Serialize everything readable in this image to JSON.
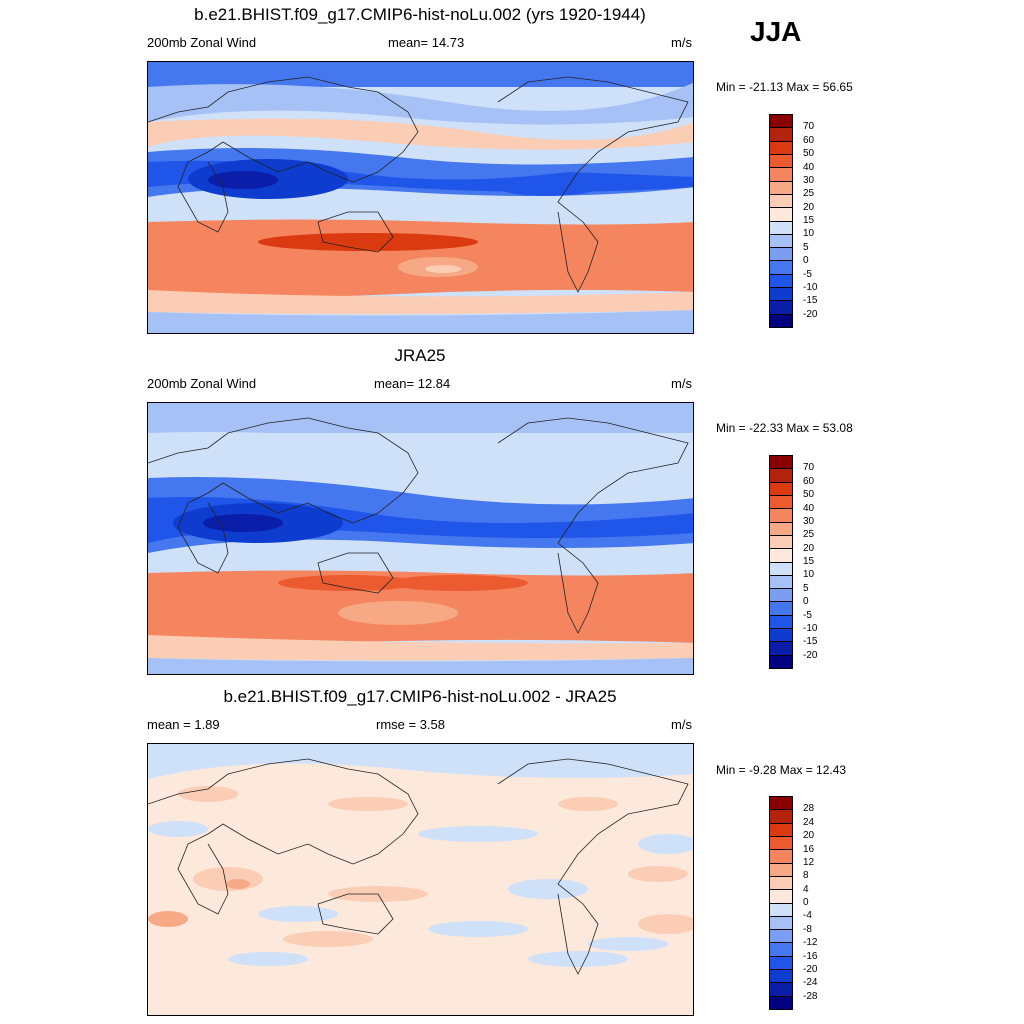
{
  "season": "JJA",
  "panels": [
    {
      "title": "b.e21.BHIST.f09_g17.CMIP6-hist-noLu.002 (yrs 1920-1944)",
      "left_label": "200mb Zonal Wind",
      "center_label": "mean=  14.73",
      "right_label": "m/s",
      "minmax": "Min = -21.13 Max =  56.65",
      "colorbar_ticks": [
        "70",
        "60",
        "50",
        "40",
        "30",
        "25",
        "20",
        "15",
        "10",
        "5",
        "0",
        "-5",
        "-10",
        "-15",
        "-20"
      ],
      "field": "model"
    },
    {
      "title": "JRA25",
      "left_label": "200mb Zonal Wind",
      "center_label": "mean=  12.84",
      "right_label": "m/s",
      "minmax": "Min = -22.33 Max =  53.08",
      "colorbar_ticks": [
        "70",
        "60",
        "50",
        "40",
        "30",
        "25",
        "20",
        "15",
        "10",
        "5",
        "0",
        "-5",
        "-10",
        "-15",
        "-20"
      ],
      "field": "obs"
    },
    {
      "title": "b.e21.BHIST.f09_g17.CMIP6-hist-noLu.002 - JRA25",
      "left_label": "mean =    1.89",
      "center_label": "rmse =    3.58",
      "right_label": "m/s",
      "minmax": "Min =  -9.28 Max =  12.43",
      "colorbar_ticks": [
        "28",
        "24",
        "20",
        "16",
        "12",
        "8",
        "4",
        "0",
        "-4",
        "-8",
        "-12",
        "-16",
        "-20",
        "-24",
        "-28"
      ],
      "field": "diff"
    }
  ],
  "colorbar_colors": [
    "#000080",
    "#0a1eaa",
    "#0d3ccf",
    "#1f55e8",
    "#4577ee",
    "#7a9ff2",
    "#a6c1f5",
    "#cfe0f9",
    "#fde8dc",
    "#fbcdb5",
    "#f7a985",
    "#f4855f",
    "#ec5b30",
    "#db3a11",
    "#b3220a",
    "#880000"
  ]
}
